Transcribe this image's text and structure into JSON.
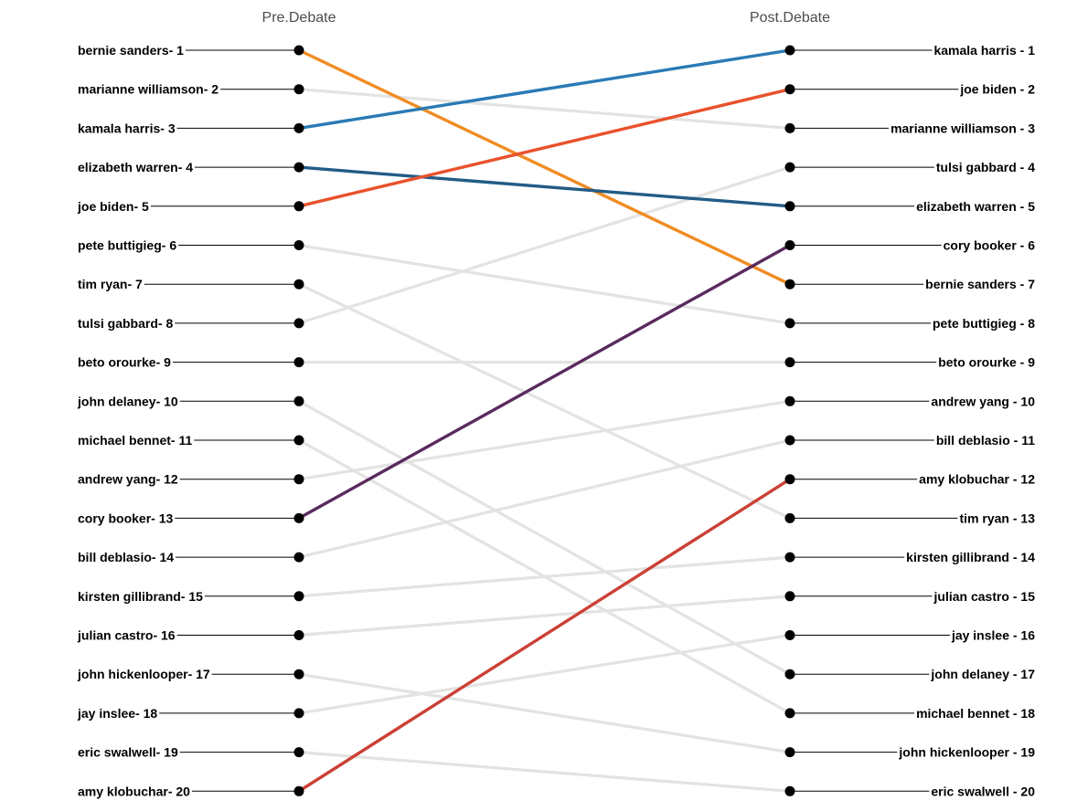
{
  "chart_data": {
    "type": "slope",
    "left_title": "Pre.Debate",
    "right_title": "Post.Debate",
    "left_labels": [
      "bernie sanders- 1",
      "marianne williamson- 2",
      "kamala harris- 3",
      "elizabeth warren- 4",
      "joe biden- 5",
      "pete buttigieg- 6",
      "tim ryan- 7",
      "tulsi gabbard- 8",
      "beto orourke- 9",
      "john delaney- 10",
      "michael bennet- 11",
      "andrew yang- 12",
      "cory booker- 13",
      "bill deblasio- 14",
      "kirsten gillibrand- 15",
      "julian castro- 16",
      "john hickenlooper- 17",
      "jay inslee- 18",
      "eric swalwell- 19",
      "amy klobuchar- 20"
    ],
    "right_labels": [
      "kamala harris - 1",
      "joe biden - 2",
      "marianne williamson - 3",
      "tulsi gabbard - 4",
      "elizabeth warren - 5",
      "cory booker - 6",
      "bernie sanders - 7",
      "pete buttigieg - 8",
      "beto orourke - 9",
      "andrew yang - 10",
      "bill deblasio - 11",
      "amy klobuchar - 12",
      "tim ryan - 13",
      "kirsten gillibrand - 14",
      "julian castro - 15",
      "jay inslee - 16",
      "john delaney - 17",
      "michael bennet - 18",
      "john hickenlooper - 19",
      "eric swalwell - 20"
    ],
    "series": [
      {
        "name": "bernie sanders",
        "pre": 1,
        "post": 7,
        "color": "#F08C23"
      },
      {
        "name": "marianne williamson",
        "pre": 2,
        "post": 3,
        "color": "#E3E3E1"
      },
      {
        "name": "kamala harris",
        "pre": 3,
        "post": 1,
        "color": "#2A7AB5"
      },
      {
        "name": "elizabeth warren",
        "pre": 4,
        "post": 5,
        "color": "#225C87"
      },
      {
        "name": "joe biden",
        "pre": 5,
        "post": 2,
        "color": "#E9512D"
      },
      {
        "name": "pete buttigieg",
        "pre": 6,
        "post": 8,
        "color": "#E3E3E1"
      },
      {
        "name": "tim ryan",
        "pre": 7,
        "post": 13,
        "color": "#E3E3E1"
      },
      {
        "name": "tulsi gabbard",
        "pre": 8,
        "post": 4,
        "color": "#E3E3E1"
      },
      {
        "name": "beto orourke",
        "pre": 9,
        "post": 9,
        "color": "#E3E3E1"
      },
      {
        "name": "john delaney",
        "pre": 10,
        "post": 17,
        "color": "#E3E3E1"
      },
      {
        "name": "michael bennet",
        "pre": 11,
        "post": 18,
        "color": "#E3E3E1"
      },
      {
        "name": "andrew yang",
        "pre": 12,
        "post": 10,
        "color": "#E3E3E1"
      },
      {
        "name": "cory booker",
        "pre": 13,
        "post": 6,
        "color": "#5A2A5E"
      },
      {
        "name": "bill deblasio",
        "pre": 14,
        "post": 11,
        "color": "#E3E3E1"
      },
      {
        "name": "kirsten gillibrand",
        "pre": 15,
        "post": 14,
        "color": "#E3E3E1"
      },
      {
        "name": "julian castro",
        "pre": 16,
        "post": 15,
        "color": "#E3E3E1"
      },
      {
        "name": "john hickenlooper",
        "pre": 17,
        "post": 19,
        "color": "#E3E3E1"
      },
      {
        "name": "jay inslee",
        "pre": 18,
        "post": 16,
        "color": "#E3E3E1"
      },
      {
        "name": "eric swalwell",
        "pre": 19,
        "post": 20,
        "color": "#E3E3E1"
      },
      {
        "name": "amy klobuchar",
        "pre": 20,
        "post": 12,
        "color": "#CB4035"
      }
    ]
  }
}
